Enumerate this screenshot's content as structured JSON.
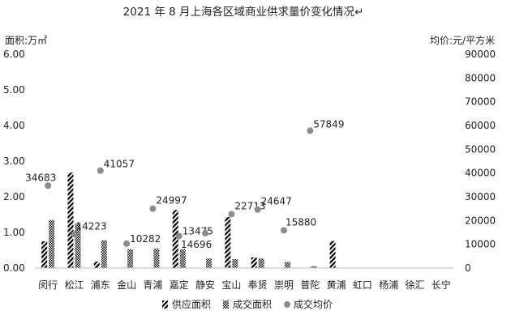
{
  "chart_data": {
    "type": "bar",
    "title": "2021 年 8 月上海各区域商业供求量价变化情况↵",
    "ylabel_left": "面积:万㎡",
    "ylabel_right": "均价:元/平方米",
    "y_left_range": [
      0,
      6
    ],
    "y_left_ticks": [
      "0.00",
      "1.00",
      "2.00",
      "3.00",
      "4.00",
      "5.00",
      "6.00"
    ],
    "y_right_range": [
      0,
      90000
    ],
    "y_right_ticks": [
      "0",
      "10000",
      "20000",
      "30000",
      "40000",
      "50000",
      "60000",
      "70000",
      "80000",
      "90000"
    ],
    "categories": [
      "闵行",
      "松江",
      "浦东",
      "金山",
      "青浦",
      "嘉定",
      "静安",
      "宝山",
      "奉贤",
      "崇明",
      "普陀",
      "黄浦",
      "虹口",
      "杨浦",
      "徐汇",
      "长宁"
    ],
    "series": [
      {
        "name": "供应面积",
        "kind": "bar",
        "pattern": "diag",
        "values": [
          0.75,
          2.68,
          0.18,
          0,
          0,
          1.63,
          0,
          1.43,
          0.3,
          0,
          0,
          0.76,
          0,
          0,
          0,
          0
        ]
      },
      {
        "name": "成交面积",
        "kind": "bar",
        "pattern": "dots",
        "values": [
          1.35,
          1.25,
          0.78,
          0.53,
          0.55,
          0.53,
          0.27,
          0.25,
          0.27,
          0.17,
          0.05,
          0,
          0,
          0,
          0,
          0
        ]
      },
      {
        "name": "成交均价",
        "kind": "scatter",
        "axis": "right",
        "values": [
          34683,
          14223,
          41057,
          10282,
          24997,
          13475,
          14696,
          22713,
          24647,
          15880,
          57849,
          null,
          null,
          null,
          null,
          null
        ],
        "labels": [
          "34683",
          "14223",
          "41057",
          "10282",
          "24997",
          "13475",
          "14696",
          "22713",
          "24647",
          "15880",
          "57849",
          "",
          "",
          "",
          "",
          ""
        ]
      }
    ],
    "legend_position": "bottom",
    "grid": false
  }
}
